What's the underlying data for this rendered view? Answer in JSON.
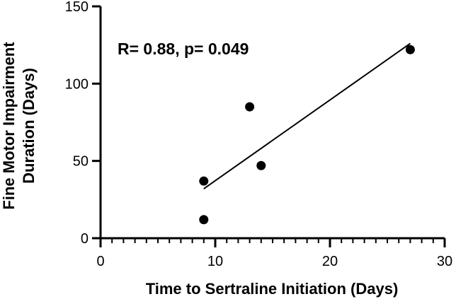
{
  "chart_data": {
    "type": "scatter",
    "title": "",
    "xlabel": "Time to Sertraline Initiation (Days)",
    "ylabel_lines": [
      "Fine Motor Impairment",
      "Duration (Days)"
    ],
    "xlim": [
      0,
      30
    ],
    "ylim": [
      0,
      150
    ],
    "x_major_ticks": [
      0,
      10,
      20,
      30
    ],
    "x_minor_step": 1,
    "y_major_ticks": [
      0,
      50,
      100,
      150
    ],
    "grid": false,
    "points": [
      {
        "x": 9,
        "y": 12
      },
      {
        "x": 9,
        "y": 37
      },
      {
        "x": 13,
        "y": 85
      },
      {
        "x": 14,
        "y": 47
      },
      {
        "x": 27,
        "y": 122
      }
    ],
    "fit_line": {
      "x": [
        9,
        27
      ],
      "y": [
        32,
        126
      ]
    },
    "annotation": "R= 0.88, p= 0.049",
    "colors": {
      "marker": "#000000",
      "line": "#000000",
      "axis": "#000000"
    }
  }
}
